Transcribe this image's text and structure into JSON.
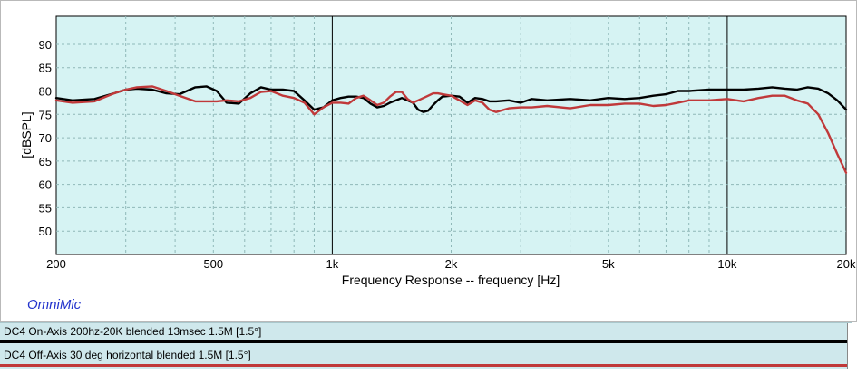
{
  "chart_data": {
    "type": "line",
    "title": "",
    "xlabel": "Frequency Response -- frequency [Hz]",
    "ylabel": "[dBSPL]",
    "x_scale": "log",
    "xlim": [
      200,
      20000
    ],
    "ylim": [
      45,
      96
    ],
    "grid": true,
    "x_tick_labels": [
      {
        "value": 200,
        "label": "200"
      },
      {
        "value": 500,
        "label": "500"
      },
      {
        "value": 1000,
        "label": "1k"
      },
      {
        "value": 2000,
        "label": "2k"
      },
      {
        "value": 5000,
        "label": "5k"
      },
      {
        "value": 10000,
        "label": "10k"
      },
      {
        "value": 20000,
        "label": "20k"
      }
    ],
    "y_ticks": [
      50,
      55,
      60,
      65,
      70,
      75,
      80,
      85,
      90
    ],
    "colors": {
      "plot_background": "#d6f3f3",
      "grid": "#8fb8b8",
      "major_grid": "#000000",
      "series_on_axis": "#000000",
      "series_off_axis": "#c0393a",
      "brand": "#2233cc",
      "legend_background": "#cfe8ec"
    },
    "series": [
      {
        "name": "DC4 On-Axis 200hz-20K blended 13msec 1.5M [1.5°]",
        "color": "#000000",
        "x": [
          200,
          220,
          250,
          280,
          300,
          320,
          350,
          380,
          410,
          450,
          480,
          510,
          540,
          580,
          620,
          660,
          700,
          750,
          800,
          850,
          900,
          950,
          1000,
          1050,
          1100,
          1150,
          1200,
          1250,
          1300,
          1350,
          1400,
          1450,
          1500,
          1550,
          1600,
          1650,
          1700,
          1750,
          1800,
          1850,
          1900,
          2000,
          2100,
          2200,
          2300,
          2400,
          2500,
          2600,
          2800,
          3000,
          3200,
          3500,
          4000,
          4500,
          5000,
          5500,
          6000,
          6500,
          7000,
          7500,
          8000,
          9000,
          10000,
          11000,
          12000,
          13000,
          14000,
          15000,
          16000,
          17000,
          18000,
          19000,
          20000
        ],
        "y": [
          78.5,
          78.0,
          78.3,
          79.5,
          80.3,
          80.5,
          80.3,
          79.5,
          79.3,
          80.8,
          81.0,
          80.0,
          77.5,
          77.3,
          79.5,
          80.8,
          80.3,
          80.3,
          80.0,
          78.0,
          76.0,
          76.5,
          78.0,
          78.5,
          78.8,
          78.8,
          78.5,
          77.3,
          76.5,
          76.8,
          77.5,
          78.0,
          78.5,
          78.0,
          77.5,
          76.0,
          75.5,
          75.8,
          77.0,
          78.0,
          78.8,
          79.0,
          78.8,
          77.5,
          78.5,
          78.3,
          77.8,
          77.8,
          78.0,
          77.5,
          78.3,
          78.0,
          78.3,
          78.0,
          78.5,
          78.3,
          78.5,
          79.0,
          79.3,
          80.0,
          80.0,
          80.3,
          80.3,
          80.3,
          80.5,
          80.8,
          80.5,
          80.3,
          80.8,
          80.5,
          79.5,
          78.0,
          76.0
        ]
      },
      {
        "name": "DC4 Off-Axis 30 deg horizontal blended 1.5M [1.5°]",
        "color": "#c0393a",
        "x": [
          200,
          220,
          250,
          280,
          300,
          320,
          350,
          380,
          410,
          450,
          480,
          510,
          540,
          580,
          620,
          660,
          700,
          750,
          800,
          850,
          900,
          950,
          1000,
          1050,
          1100,
          1150,
          1200,
          1250,
          1300,
          1350,
          1400,
          1450,
          1500,
          1550,
          1600,
          1650,
          1700,
          1750,
          1800,
          1850,
          1900,
          2000,
          2100,
          2200,
          2300,
          2400,
          2500,
          2600,
          2800,
          3000,
          3200,
          3500,
          4000,
          4500,
          5000,
          5500,
          6000,
          6500,
          7000,
          7500,
          8000,
          9000,
          10000,
          11000,
          12000,
          13000,
          14000,
          15000,
          16000,
          17000,
          18000,
          19000,
          20000
        ],
        "y": [
          78.0,
          77.5,
          77.8,
          79.5,
          80.3,
          80.8,
          81.0,
          80.0,
          79.0,
          77.8,
          77.8,
          77.8,
          78.0,
          77.8,
          78.5,
          79.8,
          80.0,
          79.0,
          78.5,
          77.5,
          75.0,
          76.5,
          77.5,
          77.5,
          77.3,
          78.5,
          79.0,
          78.0,
          77.0,
          77.5,
          78.8,
          79.8,
          79.8,
          78.3,
          77.5,
          78.0,
          78.5,
          79.0,
          79.5,
          79.5,
          79.3,
          79.0,
          78.0,
          77.0,
          78.0,
          77.5,
          76.0,
          75.5,
          76.3,
          76.5,
          76.5,
          76.8,
          76.3,
          77.0,
          77.0,
          77.3,
          77.3,
          76.8,
          77.0,
          77.5,
          78.0,
          78.0,
          78.3,
          77.8,
          78.5,
          79.0,
          79.0,
          78.0,
          77.3,
          75.0,
          71.0,
          66.5,
          62.5
        ]
      }
    ]
  },
  "brand": {
    "name": "OmniMic"
  },
  "legend": {
    "entries": [
      {
        "label": "DC4 On-Axis 200hz-20K blended 13msec 1.5M [1.5°]",
        "color": "#000000"
      },
      {
        "label": "DC4 Off-Axis 30 deg horizontal blended 1.5M [1.5°]",
        "color": "#c0393a"
      }
    ]
  }
}
